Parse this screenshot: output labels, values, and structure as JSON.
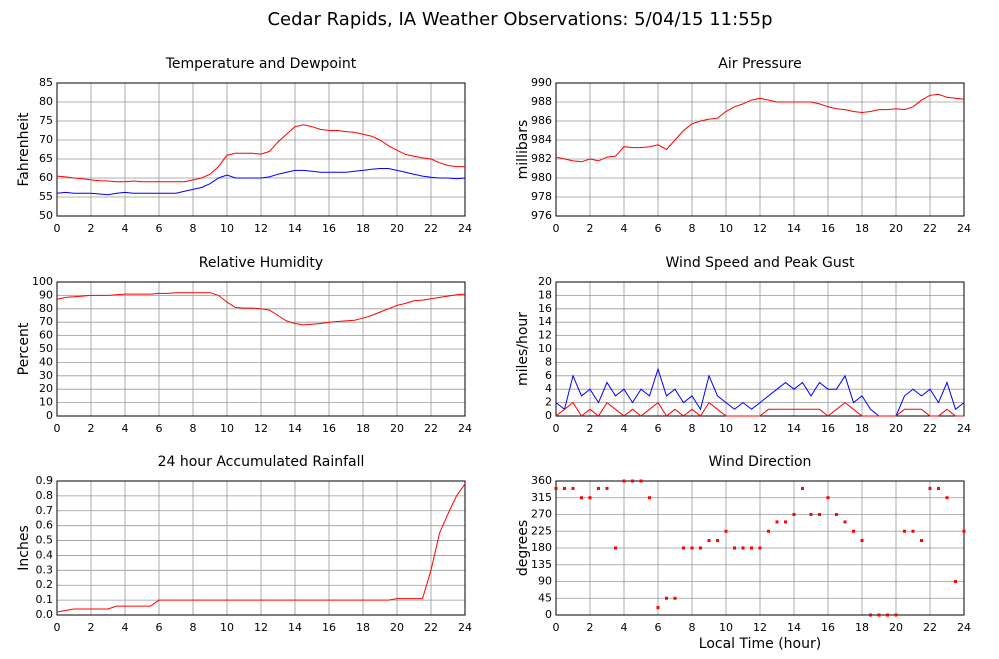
{
  "title": "Cedar Rapids, IA Weather Observations: 5/04/15 11:55p",
  "chart_data": [
    {
      "type": "line",
      "title": "Temperature and Dewpoint",
      "ylabel": "Fahrenheit",
      "x": [
        0,
        0.5,
        1,
        1.5,
        2,
        2.5,
        3,
        3.5,
        4,
        4.5,
        5,
        5.5,
        6,
        6.5,
        7,
        7.5,
        8,
        8.5,
        9,
        9.5,
        10,
        10.5,
        11,
        11.5,
        12,
        12.5,
        13,
        13.5,
        14,
        14.5,
        15,
        15.5,
        16,
        16.5,
        17,
        17.5,
        18,
        18.5,
        19,
        19.5,
        20,
        20.5,
        21,
        21.5,
        22,
        22.5,
        23,
        23.5,
        24
      ],
      "series": [
        {
          "color": "#ff0000",
          "values": [
            60.5,
            60.3,
            60,
            59.8,
            59.5,
            59.3,
            59.2,
            59,
            59,
            59.2,
            59,
            59,
            59,
            59,
            59,
            59,
            59.5,
            60,
            61,
            63,
            66,
            66.5,
            66.5,
            66.5,
            66.3,
            67,
            69.5,
            71.5,
            73.5,
            74,
            73.5,
            72.8,
            72.5,
            72.5,
            72.2,
            72,
            71.5,
            71,
            70,
            68.5,
            67.3,
            66.2,
            65.7,
            65.3,
            65,
            64,
            63.3,
            63,
            63
          ]
        },
        {
          "color": "#0000ff",
          "values": [
            56,
            56.2,
            56,
            56,
            56,
            55.8,
            55.6,
            56,
            56.2,
            56,
            56,
            56,
            56,
            56,
            56,
            56.5,
            57,
            57.5,
            58.5,
            60,
            60.8,
            60,
            60,
            60,
            60,
            60.3,
            61,
            61.5,
            62,
            62,
            61.8,
            61.5,
            61.5,
            61.5,
            61.5,
            61.8,
            62,
            62.3,
            62.5,
            62.5,
            62,
            61.5,
            61,
            60.5,
            60.2,
            60,
            60,
            59.8,
            60
          ]
        }
      ],
      "xlim": [
        0,
        24
      ],
      "xticks": [
        0,
        2,
        4,
        6,
        8,
        10,
        12,
        14,
        16,
        18,
        20,
        22,
        24
      ],
      "ylim": [
        50,
        85
      ],
      "yticks": [
        50,
        55,
        60,
        65,
        70,
        75,
        80,
        85
      ],
      "grid": true
    },
    {
      "type": "line",
      "title": "Air Pressure",
      "ylabel": "millibars",
      "x": [
        0,
        0.5,
        1,
        1.5,
        2,
        2.5,
        3,
        3.5,
        4,
        4.5,
        5,
        5.5,
        6,
        6.5,
        7,
        7.5,
        8,
        8.5,
        9,
        9.5,
        10,
        10.5,
        11,
        11.5,
        12,
        12.5,
        13,
        13.5,
        14,
        14.5,
        15,
        15.5,
        16,
        16.5,
        17,
        17.5,
        18,
        18.5,
        19,
        19.5,
        20,
        20.5,
        21,
        21.5,
        22,
        22.5,
        23,
        23.5,
        24
      ],
      "series": [
        {
          "color": "#ff0000",
          "values": [
            982.2,
            982,
            981.8,
            981.7,
            982,
            981.8,
            982.2,
            982.3,
            983.3,
            983.2,
            983.2,
            983.3,
            983.5,
            983,
            984,
            985,
            985.7,
            986,
            986.2,
            986.3,
            987,
            987.5,
            987.8,
            988.2,
            988.4,
            988.2,
            988,
            988,
            988,
            988,
            988,
            987.8,
            987.5,
            987.3,
            987.2,
            987,
            986.9,
            987,
            987.2,
            987.2,
            987.3,
            987.2,
            987.5,
            988.2,
            988.7,
            988.8,
            988.5,
            988.4,
            988.3
          ]
        }
      ],
      "xlim": [
        0,
        24
      ],
      "xticks": [
        0,
        2,
        4,
        6,
        8,
        10,
        12,
        14,
        16,
        18,
        20,
        22,
        24
      ],
      "ylim": [
        976,
        990
      ],
      "yticks": [
        976,
        978,
        980,
        982,
        984,
        986,
        988,
        990
      ],
      "grid": true
    },
    {
      "type": "line",
      "title": "Relative Humidity",
      "ylabel": "Percent",
      "x": [
        0,
        0.5,
        1,
        1.5,
        2,
        2.5,
        3,
        3.5,
        4,
        4.5,
        5,
        5.5,
        6,
        6.5,
        7,
        7.5,
        8,
        8.5,
        9,
        9.5,
        10,
        10.5,
        11,
        11.5,
        12,
        12.5,
        13,
        13.5,
        14,
        14.5,
        15,
        15.5,
        16,
        16.5,
        17,
        17.5,
        18,
        18.5,
        19,
        19.5,
        20,
        20.5,
        21,
        21.5,
        22,
        22.5,
        23,
        23.5,
        24
      ],
      "series": [
        {
          "color": "#ff0000",
          "values": [
            87,
            88.5,
            89,
            89.5,
            90,
            90,
            90,
            90.5,
            91,
            91,
            91,
            91,
            91.5,
            91.5,
            92,
            92,
            92,
            92,
            92,
            90,
            85,
            81,
            80.5,
            80.5,
            80,
            79,
            75,
            71,
            69,
            68,
            68.5,
            69,
            70,
            70.5,
            71,
            71.5,
            73,
            75,
            77.5,
            80,
            82.5,
            84,
            86,
            86.5,
            87.5,
            88.5,
            89.5,
            90.5,
            91
          ]
        }
      ],
      "xlim": [
        0,
        24
      ],
      "xticks": [
        0,
        2,
        4,
        6,
        8,
        10,
        12,
        14,
        16,
        18,
        20,
        22,
        24
      ],
      "ylim": [
        0,
        100
      ],
      "yticks": [
        0,
        10,
        20,
        30,
        40,
        50,
        60,
        70,
        80,
        90,
        100
      ],
      "grid": true
    },
    {
      "type": "line",
      "title": "Wind Speed and Peak Gust",
      "ylabel": "miles/hour",
      "x": [
        0,
        0.5,
        1,
        1.5,
        2,
        2.5,
        3,
        3.5,
        4,
        4.5,
        5,
        5.5,
        6,
        6.5,
        7,
        7.5,
        8,
        8.5,
        9,
        9.5,
        10,
        10.5,
        11,
        11.5,
        12,
        12.5,
        13,
        13.5,
        14,
        14.5,
        15,
        15.5,
        16,
        16.5,
        17,
        17.5,
        18,
        18.5,
        19,
        19.5,
        20,
        20.5,
        21,
        21.5,
        22,
        22.5,
        23,
        23.5,
        24
      ],
      "series": [
        {
          "color": "#0000ff",
          "values": [
            2,
            1,
            6,
            3,
            4,
            2,
            5,
            3,
            4,
            2,
            4,
            3,
            7,
            3,
            4,
            2,
            3,
            1,
            6,
            3,
            2,
            1,
            2,
            1,
            2,
            3,
            4,
            5,
            4,
            5,
            3,
            5,
            4,
            4,
            6,
            2,
            3,
            1,
            0,
            0,
            0,
            3,
            4,
            3,
            4,
            2,
            5,
            1,
            2
          ]
        },
        {
          "color": "#ff0000",
          "values": [
            0,
            1,
            2,
            0,
            1,
            0,
            2,
            1,
            0,
            1,
            0,
            1,
            2,
            0,
            1,
            0,
            1,
            0,
            2,
            1,
            0,
            0,
            0,
            0,
            0,
            1,
            1,
            1,
            1,
            1,
            1,
            1,
            0,
            1,
            2,
            1,
            0,
            0,
            0,
            0,
            0,
            1,
            1,
            1,
            0,
            0,
            1,
            0,
            0
          ]
        }
      ],
      "xlim": [
        0,
        24
      ],
      "xticks": [
        0,
        2,
        4,
        6,
        8,
        10,
        12,
        14,
        16,
        18,
        20,
        22,
        24
      ],
      "ylim": [
        0,
        20
      ],
      "yticks": [
        0,
        2,
        4,
        6,
        8,
        10,
        12,
        14,
        16,
        18,
        20
      ],
      "grid": true
    },
    {
      "type": "line",
      "title": "24 hour Accumulated Rainfall",
      "ylabel": "Inches",
      "x": [
        0,
        0.5,
        1,
        1.5,
        2,
        2.5,
        3,
        3.5,
        4,
        4.5,
        5,
        5.5,
        6,
        6.5,
        7,
        7.5,
        8,
        8.5,
        9,
        9.5,
        10,
        10.5,
        11,
        11.5,
        12,
        12.5,
        13,
        13.5,
        14,
        14.5,
        15,
        15.5,
        16,
        16.5,
        17,
        17.5,
        18,
        18.5,
        19,
        19.5,
        20,
        20.5,
        21,
        21.5,
        22,
        22.5,
        23,
        23.5,
        24
      ],
      "series": [
        {
          "color": "#ff0000",
          "values": [
            0.02,
            0.03,
            0.04,
            0.04,
            0.04,
            0.04,
            0.04,
            0.06,
            0.06,
            0.06,
            0.06,
            0.06,
            0.1,
            0.1,
            0.1,
            0.1,
            0.1,
            0.1,
            0.1,
            0.1,
            0.1,
            0.1,
            0.1,
            0.1,
            0.1,
            0.1,
            0.1,
            0.1,
            0.1,
            0.1,
            0.1,
            0.1,
            0.1,
            0.1,
            0.1,
            0.1,
            0.1,
            0.1,
            0.1,
            0.1,
            0.11,
            0.11,
            0.11,
            0.11,
            0.3,
            0.55,
            0.68,
            0.8,
            0.88
          ]
        }
      ],
      "xlim": [
        0,
        24
      ],
      "xticks": [
        0,
        2,
        4,
        6,
        8,
        10,
        12,
        14,
        16,
        18,
        20,
        22,
        24
      ],
      "ylim": [
        0,
        0.9
      ],
      "yticks": [
        {
          "value": 0,
          "label": "0.0"
        },
        0.1,
        0.2,
        0.3,
        0.4,
        0.5,
        0.6,
        0.7,
        0.8,
        0.9
      ],
      "grid": true
    },
    {
      "type": "scatter",
      "title": "Wind Direction",
      "ylabel": "degrees",
      "xlabel": "Local Time (hour)",
      "x": [
        0,
        0.5,
        1,
        1.5,
        2,
        2.5,
        3,
        3.5,
        4,
        4.5,
        5,
        5.5,
        6,
        6.5,
        7,
        7.5,
        8,
        8.5,
        9,
        9.5,
        10,
        10.5,
        11,
        11.5,
        12,
        12.5,
        13,
        13.5,
        14,
        14.5,
        15,
        15.5,
        16,
        16.5,
        17,
        17.5,
        18,
        18.5,
        19,
        19.5,
        20,
        20.5,
        21,
        21.5,
        22,
        22.5,
        23,
        23.5,
        24
      ],
      "series": [
        {
          "color": "#ff0000",
          "values": [
            340,
            340,
            340,
            315,
            315,
            340,
            340,
            180,
            360,
            360,
            360,
            315,
            20,
            45,
            45,
            180,
            180,
            180,
            200,
            200,
            225,
            180,
            180,
            180,
            180,
            225,
            250,
            250,
            270,
            340,
            270,
            270,
            315,
            270,
            250,
            225,
            200,
            0,
            0,
            0,
            0,
            225,
            225,
            200,
            340,
            340,
            315,
            90,
            225
          ]
        }
      ],
      "xlim": [
        0,
        24
      ],
      "xticks": [
        0,
        2,
        4,
        6,
        8,
        10,
        12,
        14,
        16,
        18,
        20,
        22,
        24
      ],
      "ylim": [
        0,
        360
      ],
      "yticks": [
        0,
        45,
        90,
        135,
        180,
        225,
        270,
        315,
        360
      ],
      "grid": true
    }
  ]
}
